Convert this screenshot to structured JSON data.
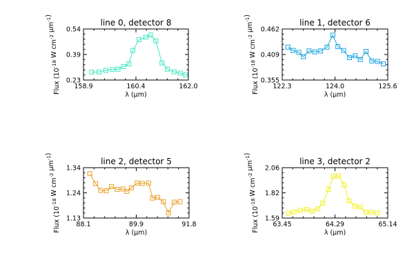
{
  "chart_data": [
    {
      "type": "line",
      "title": "line 0, detector 8",
      "xlabel": "λ (μm)",
      "ylabel": "Flux (10^-18 W cm^-2 μm^-1)",
      "xlim": [
        158.9,
        162.0
      ],
      "ylim": [
        0.23,
        0.54
      ],
      "xticks": [
        "158.9",
        "160.4",
        "162.0"
      ],
      "yticks": [
        "0.23",
        "0.39",
        "0.54"
      ],
      "color": "#3fe6c2",
      "marker": "square",
      "x": [
        159.14,
        159.36,
        159.56,
        159.76,
        159.92,
        160.08,
        160.24,
        160.36,
        160.54,
        160.74,
        160.88,
        161.04,
        161.22,
        161.38,
        161.58,
        161.76,
        161.92
      ],
      "y": [
        0.278,
        0.279,
        0.289,
        0.294,
        0.296,
        0.312,
        0.328,
        0.41,
        0.475,
        0.49,
        0.503,
        0.468,
        0.334,
        0.296,
        0.28,
        0.272,
        0.261
      ]
    },
    {
      "type": "line",
      "title": "line 1, detector 6",
      "xlabel": "λ (μm)",
      "ylabel": "Flux (10^-18 W cm^-2 μm^-1)",
      "xlim": [
        122.3,
        125.6
      ],
      "ylim": [
        0.355,
        0.462
      ],
      "xticks": [
        "122.3",
        "124.0",
        "125.6"
      ],
      "yticks": [
        "0.355",
        "0.409",
        "0.462"
      ],
      "color": "#1aa3dd",
      "marker": "square",
      "x": [
        122.48,
        122.64,
        122.82,
        122.96,
        123.14,
        123.32,
        123.5,
        123.7,
        123.88,
        124.04,
        124.22,
        124.4,
        124.58,
        124.74,
        124.92,
        125.1,
        125.28,
        125.46
      ],
      "y": [
        0.424,
        0.417,
        0.413,
        0.404,
        0.416,
        0.414,
        0.416,
        0.424,
        0.449,
        0.425,
        0.417,
        0.402,
        0.406,
        0.398,
        0.415,
        0.395,
        0.394,
        0.389
      ]
    },
    {
      "type": "line",
      "title": "line 2, detector 5",
      "xlabel": "λ (μm)",
      "ylabel": "Flux (10^-18 W cm^-2 μm^-1)",
      "xlim": [
        88.1,
        91.8
      ],
      "ylim": [
        1.13,
        1.34
      ],
      "xticks": [
        "88.1",
        "89.9",
        "91.8"
      ],
      "yticks": [
        "1.13",
        "1.24",
        "1.34"
      ],
      "color": "#e8a024",
      "marker": "square",
      "x": [
        88.32,
        88.52,
        88.7,
        88.9,
        89.08,
        89.28,
        89.48,
        89.62,
        89.78,
        89.98,
        90.16,
        90.38,
        90.52,
        90.7,
        90.9,
        91.08,
        91.28,
        91.48
      ],
      "y": [
        1.315,
        1.274,
        1.245,
        1.244,
        1.261,
        1.249,
        1.251,
        1.241,
        1.256,
        1.276,
        1.274,
        1.276,
        1.213,
        1.216,
        1.198,
        1.152,
        1.196,
        1.198
      ]
    },
    {
      "type": "line",
      "title": "line 3, detector 2",
      "xlabel": "λ (μm)",
      "ylabel": "Flux (10^-18 W cm^-2 μm^-1)",
      "xlim": [
        63.45,
        65.14
      ],
      "ylim": [
        1.59,
        2.06
      ],
      "xticks": [
        "63.45",
        "64.29",
        "65.14"
      ],
      "yticks": [
        "1.59",
        "1.82",
        "2.06"
      ],
      "color": "#f0f020",
      "marker": "square",
      "x": [
        63.55,
        63.64,
        63.74,
        63.84,
        63.93,
        64.02,
        64.1,
        64.19,
        64.27,
        64.35,
        64.44,
        64.52,
        64.61,
        64.7,
        64.79,
        64.88,
        64.97
      ],
      "y": [
        1.636,
        1.647,
        1.662,
        1.669,
        1.654,
        1.677,
        1.729,
        1.858,
        1.979,
        1.984,
        1.899,
        1.752,
        1.702,
        1.693,
        1.644,
        1.645,
        1.638
      ]
    }
  ]
}
